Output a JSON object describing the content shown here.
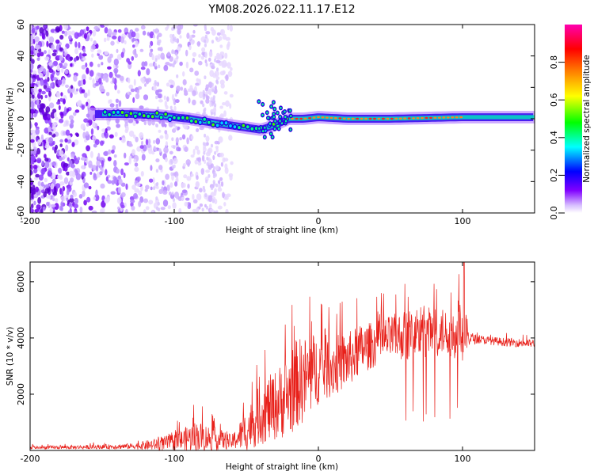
{
  "figure_title": "YM08.2026.022.11.17.E12",
  "chart_data": [
    {
      "type": "heatmap",
      "title": "YM08.2026.022.11.17.E12",
      "xlabel": "Height of straight line (km)",
      "ylabel": "Frequency (Hz)",
      "xlim": [
        -200,
        150
      ],
      "ylim": [
        -60,
        60
      ],
      "x_ticks": [
        -200,
        -100,
        0,
        100
      ],
      "y_ticks": [
        -60,
        -40,
        -20,
        0,
        20,
        40,
        60
      ],
      "colorbar": {
        "label": "Normalized spectral amplitude",
        "range": [
          0,
          1
        ],
        "ticks": [
          0.0,
          0.2,
          0.4,
          0.6,
          0.8
        ],
        "tick_labels": [
          "0.0",
          "0.2",
          "0.4",
          "0.6",
          "0.8"
        ],
        "colormap": [
          "#ffffff",
          "#8000ff",
          "#0000ff",
          "#00ffff",
          "#00ff00",
          "#ffff00",
          "#ff8000",
          "#ff0000",
          "#ff00ff"
        ]
      },
      "noise_region_x": [
        -200,
        -60
      ],
      "signal_band_center_hz": [
        [
          -150,
          3
        ],
        [
          -130,
          3
        ],
        [
          -110,
          2
        ],
        [
          -90,
          0
        ],
        [
          -70,
          -3
        ],
        [
          -55,
          -5
        ],
        [
          -40,
          -7
        ],
        [
          -30,
          -4
        ],
        [
          -20,
          0
        ],
        [
          -10,
          0
        ],
        [
          0,
          1
        ],
        [
          20,
          0
        ],
        [
          50,
          0
        ],
        [
          100,
          1
        ],
        [
          150,
          1
        ]
      ],
      "signal_band_width_hz": 8
    },
    {
      "type": "line",
      "xlabel": "Height of straight line (km)",
      "ylabel": "SNR (10 * v/v)",
      "xlim": [
        -200,
        150
      ],
      "ylim": [
        0,
        6700
      ],
      "x_ticks": [
        -200,
        -100,
        0,
        100
      ],
      "y_ticks": [
        2000,
        4000,
        6000
      ],
      "series": [
        {
          "name": "SNR",
          "color": "#e8201a",
          "envelope": {
            "x": [
              -200,
              -160,
              -130,
              -115,
              -100,
              -85,
              -70,
              -60,
              -50,
              -40,
              -30,
              -20,
              -15,
              -10,
              -5,
              0,
              10,
              20,
              30,
              40,
              50,
              60,
              70,
              80,
              90,
              100,
              105,
              110,
              120,
              130,
              150
            ],
            "base": [
              100,
              120,
              150,
              200,
              300,
              500,
              400,
              300,
              700,
              1300,
              1600,
              2000,
              2400,
              2500,
              2700,
              2900,
              3000,
              3200,
              3600,
              3800,
              4000,
              4100,
              4200,
              4200,
              4200,
              4300,
              4000,
              3950,
              3900,
              3850,
              3800
            ],
            "amplitude": [
              120,
              140,
              200,
              400,
              600,
              1100,
              800,
              500,
              1500,
              2200,
              2500,
              3000,
              3200,
              3100,
              3000,
              2500,
              2200,
              2000,
              1800,
              1600,
              1600,
              1800,
              2000,
              1800,
              1600,
              2400,
              500,
              300,
              300,
              300,
              300
            ]
          }
        }
      ]
    }
  ]
}
